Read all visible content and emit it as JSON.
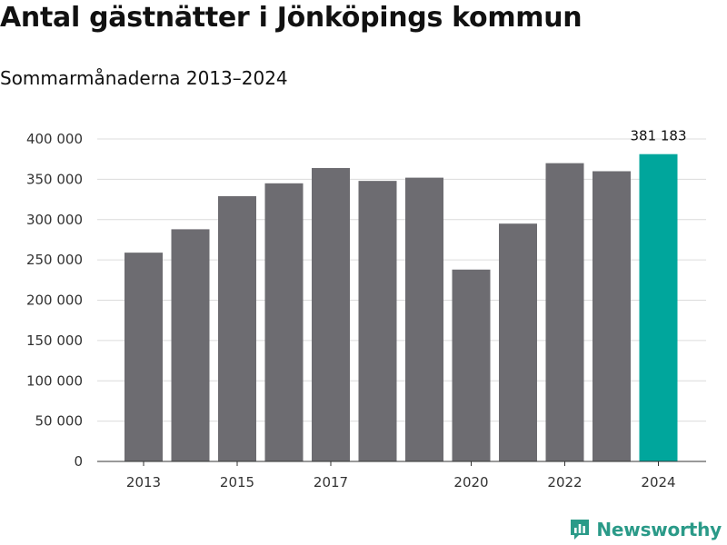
{
  "title": "Antal gästnätter i Jönköpings kommun",
  "subtitle": "Sommarmånaderna 2013–2024",
  "brand": {
    "name": "Newsworthy",
    "icon": "newsworthy-logo-icon",
    "color": "#2a9a88"
  },
  "chart_data": {
    "type": "bar",
    "categories": [
      "2013",
      "2014",
      "2015",
      "2016",
      "2017",
      "2018",
      "2019",
      "2020",
      "2021",
      "2022",
      "2023",
      "2024"
    ],
    "values": [
      259000,
      288000,
      329000,
      345000,
      364000,
      348000,
      352000,
      238000,
      295000,
      370000,
      360000,
      381183
    ],
    "x_tick_labels": [
      "2013",
      "2015",
      "2017",
      "2020",
      "2022",
      "2024"
    ],
    "y_ticks": [
      0,
      50000,
      100000,
      150000,
      200000,
      250000,
      300000,
      350000,
      400000
    ],
    "y_tick_labels": [
      "0",
      "50 000",
      "100 000",
      "150 000",
      "200 000",
      "250 000",
      "300 000",
      "350 000",
      "400 000"
    ],
    "ylim": [
      0,
      400000
    ],
    "grid": true,
    "bar_color": "#6d6c71",
    "highlight_color": "#00a69c",
    "highlight_category": "2024",
    "annotations": [
      {
        "category": "2024",
        "text": "381 183"
      }
    ]
  }
}
